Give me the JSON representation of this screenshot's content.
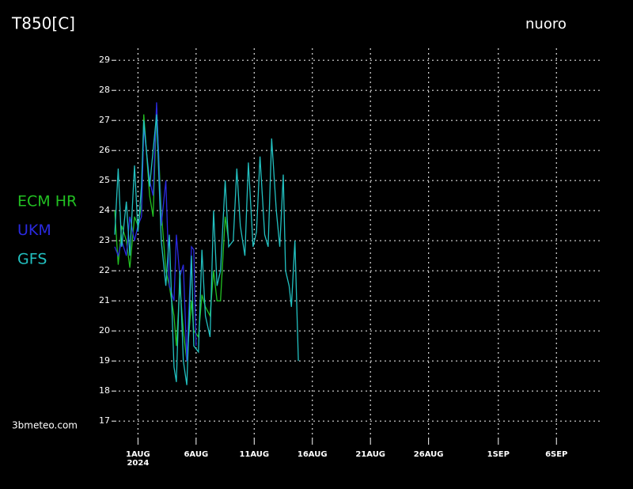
{
  "chart_data": {
    "type": "line",
    "title": "T850[C]",
    "location": "nuoro",
    "source": "3bmeteo.com",
    "year_label": "2024",
    "xlim": [
      -1,
      41
    ],
    "ylim": [
      16.4,
      29.4
    ],
    "yticks": [
      17,
      18,
      19,
      20,
      21,
      22,
      23,
      24,
      25,
      26,
      27,
      28,
      29
    ],
    "xticks": [
      {
        "value": 1,
        "label": "1AUG"
      },
      {
        "value": 6,
        "label": "6AUG"
      },
      {
        "value": 11,
        "label": "11AUG"
      },
      {
        "value": 16,
        "label": "16AUG"
      },
      {
        "value": 21,
        "label": "21AUG"
      },
      {
        "value": 26,
        "label": "26AUG"
      },
      {
        "value": 32,
        "label": "1SEP"
      },
      {
        "value": 37,
        "label": "6SEP"
      }
    ],
    "grid": true,
    "series": [
      {
        "name": "ECM HR",
        "color": "#22c022",
        "x": [
          -1.0,
          -0.7,
          -0.4,
          0.0,
          0.3,
          0.7,
          1.0,
          1.3,
          1.5,
          2.0,
          2.3,
          2.6,
          3.0,
          3.4,
          3.7,
          4.1,
          4.3,
          4.6,
          4.9,
          5.2,
          5.6,
          5.8,
          6.2,
          6.5,
          6.8,
          7.2,
          7.5,
          7.8,
          8.1,
          8.5,
          8.8
        ],
        "values": [
          24.0,
          22.2,
          23.5,
          23.0,
          22.1,
          23.8,
          23.5,
          24.2,
          27.2,
          24.5,
          23.8,
          27.4,
          24.0,
          22.0,
          21.5,
          20.5,
          19.5,
          21.5,
          20.0,
          19.0,
          21.0,
          20.0,
          19.8,
          21.2,
          20.8,
          20.5,
          22.0,
          21.0,
          21.0,
          23.8,
          23.0
        ]
      },
      {
        "name": "UKM",
        "color": "#2a2ae0",
        "x": [
          -1.0,
          -0.7,
          -0.4,
          0.0,
          0.3,
          0.7,
          1.0,
          1.3,
          1.5,
          2.0,
          2.3,
          2.6,
          3.0,
          3.4,
          3.7,
          4.1,
          4.3,
          4.6,
          4.9,
          5.2,
          5.6,
          5.8,
          6.0
        ],
        "values": [
          22.8,
          22.5,
          23.0,
          22.5,
          23.8,
          23.0,
          23.5,
          23.8,
          26.8,
          25.0,
          24.5,
          27.6,
          23.5,
          25.0,
          21.5,
          21.0,
          23.2,
          21.8,
          22.2,
          19.0,
          22.8,
          22.7,
          19.5
        ]
      },
      {
        "name": "GFS",
        "color": "#22c0c0",
        "x": [
          -1.0,
          -0.7,
          -0.4,
          0.0,
          0.3,
          0.7,
          1.0,
          1.3,
          1.5,
          2.0,
          2.6,
          3.0,
          3.4,
          3.7,
          4.1,
          4.3,
          4.6,
          4.9,
          5.2,
          5.6,
          5.8,
          6.2,
          6.5,
          6.8,
          7.2,
          7.5,
          7.8,
          8.1,
          8.5,
          8.8,
          9.2,
          9.5,
          9.8,
          10.2,
          10.5,
          10.9,
          11.2,
          11.5,
          11.9,
          12.2,
          12.5,
          12.9,
          13.2,
          13.5,
          13.7,
          14.0,
          14.2,
          14.5,
          14.8
        ],
        "values": [
          23.2,
          25.4,
          22.8,
          24.3,
          22.5,
          25.5,
          23.3,
          24.8,
          27.0,
          24.8,
          27.2,
          23.0,
          21.5,
          23.2,
          18.8,
          18.3,
          22.0,
          19.0,
          18.2,
          22.5,
          19.5,
          19.3,
          22.7,
          20.5,
          19.8,
          24.0,
          21.5,
          22.0,
          25.0,
          22.8,
          23.0,
          25.4,
          23.5,
          22.5,
          25.6,
          22.8,
          23.3,
          25.8,
          23.2,
          22.8,
          26.4,
          24.0,
          22.8,
          25.2,
          22.0,
          21.5,
          20.8,
          23.0,
          19.0
        ]
      }
    ]
  }
}
